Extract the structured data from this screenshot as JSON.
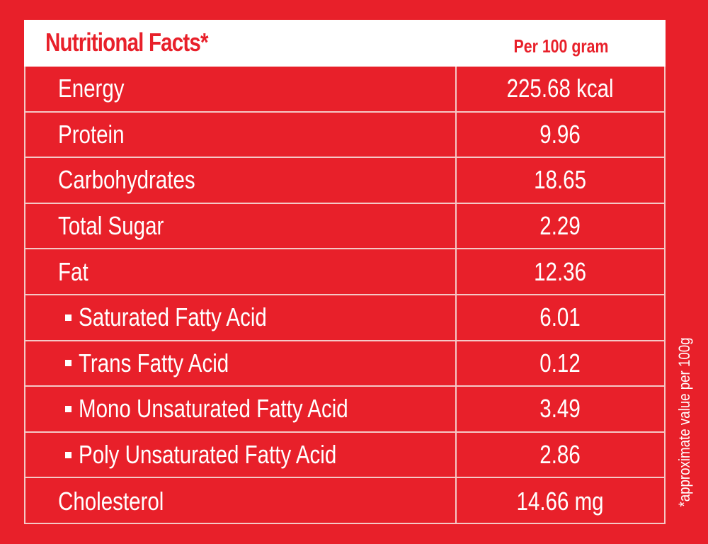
{
  "header": {
    "title": "Nutritional Facts*",
    "per": "Per 100 gram"
  },
  "rows": [
    {
      "name": "Energy",
      "value": "225.68 kcal"
    },
    {
      "name": "Protein",
      "value": "9.96"
    },
    {
      "name": "Carbohydrates",
      "value": "18.65"
    },
    {
      "name": "Total Sugar",
      "value": "2.29"
    },
    {
      "name": "Fat",
      "value": "12.36"
    },
    {
      "name": "Saturated Fatty Acid",
      "value": "6.01"
    },
    {
      "name": "Trans Fatty Acid",
      "value": "0.12"
    },
    {
      "name": "Mono Unsaturated Fatty Acid",
      "value": "3.49"
    },
    {
      "name": "Poly Unsaturated Fatty Acid",
      "value": "2.86"
    },
    {
      "name": "Cholesterol",
      "value": "14.66 mg"
    }
  ],
  "footnote": "*approximate value per 100g",
  "colors": {
    "background": "#e8202a",
    "header_bg": "#ffffff",
    "grid": "#f5c8c6",
    "text": "#ffffff"
  }
}
